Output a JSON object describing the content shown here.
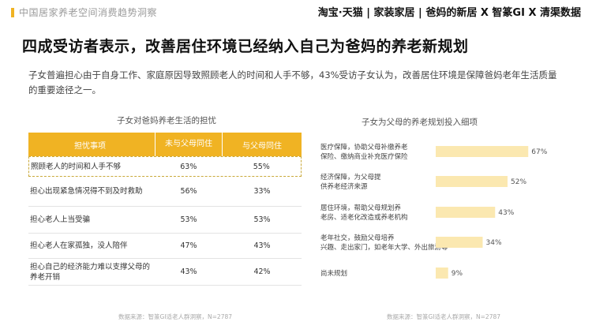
{
  "header": {
    "report_title": "中国居家养老空间消费趋势洞察",
    "brands": "淘宝·天猫 | 家装家居 | 爸妈的新居 X 智篆GI X 清渠数据"
  },
  "headline": "四成受访者表示，改善居住环境已经纳入自己为爸妈的养老新规划",
  "description": "子女普遍担心由于自身工作、家庭原因导致照顾老人的时间和人手不够，43%受访子女认为，改善居住环境是保障爸妈老年生活质量的重要途径之一。",
  "left_panel": {
    "title": "子女对爸妈养老生活的担忧",
    "columns": [
      "担忧事项",
      "未与父母同住",
      "与父母同住"
    ],
    "rows": [
      {
        "item": "照顾老人的时间和人手不够",
        "not_living": "63%",
        "living": "55%"
      },
      {
        "item": "担心出现紧急情况得不到及时救助",
        "not_living": "56%",
        "living": "33%"
      },
      {
        "item": "担心老人上当受骗",
        "not_living": "53%",
        "living": "53%"
      },
      {
        "item": "担心老人在家孤独，没人陪伴",
        "not_living": "47%",
        "living": "43%"
      },
      {
        "item": "担心自己的经济能力难以支撑父母的养老开销",
        "not_living": "43%",
        "living": "42%"
      }
    ],
    "source": "数据来源：智篆GI适老人群洞察，N=2787"
  },
  "right_panel": {
    "source": "数据来源：智篆GI适老人群洞察，N=2787"
  },
  "chart_data": {
    "type": "bar",
    "title": "子女为父母的养老规划投入细项",
    "orientation": "horizontal",
    "categories": [
      "医疗保障，协助父母补缴养老保险、缴纳商业补充医疗保险",
      "经济保障，为父母提供养老经济来源",
      "居住环境，帮助父母规划养老房、适老化改造或养老机构",
      "老年社交，鼓励父母培养兴趣、走出家门，如老年大学、外出旅游等",
      "尚未规划"
    ],
    "values": [
      67,
      52,
      43,
      34,
      9
    ],
    "value_labels": [
      "67%",
      "52%",
      "43%",
      "34%",
      "9%"
    ],
    "xlim": [
      0,
      100
    ],
    "bar_color": "#fbe8b0",
    "grid": false
  }
}
